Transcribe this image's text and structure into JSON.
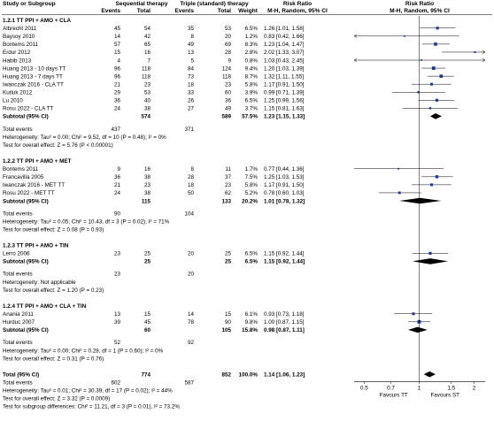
{
  "chart_data": {
    "type": "forest",
    "headers": {
      "study": "Study or Subgroup",
      "seq_group": "Sequential therapy",
      "seq_events": "Events",
      "seq_total": "Total",
      "trip_group": "Triple (standard) therapy",
      "trip_events": "Events",
      "trip_total": "Total",
      "weight": "Weight",
      "rr": "Risk Ratio",
      "rr_method": "M-H, Random, 95% CI",
      "plot_title": "Risk Ratio",
      "plot_method": "M-H, Random, 95% CI"
    },
    "axis": {
      "scale": "log",
      "ticks": [
        0.5,
        0.7,
        1,
        1.5,
        2
      ],
      "tick_labels": [
        "0.5",
        "0.7",
        "1",
        "1.5",
        "2"
      ],
      "xlim": [
        0.44,
        2.3
      ],
      "left_label": "Favours TT",
      "right_label": "Favours ST"
    },
    "subgroups": [
      {
        "title": "1.2.1 TT PPI + AMO + CLA",
        "studies": [
          {
            "name": "Albrecht 2011",
            "e1": "45",
            "n1": "54",
            "e2": "35",
            "n2": "53",
            "w": "6.5%",
            "ci": "1.26 [1.01, 1.58]",
            "rr": 1.26,
            "lo": 1.01,
            "hi": 1.58
          },
          {
            "name": "Baysoy 2010",
            "e1": "14",
            "n1": "42",
            "e2": "8",
            "n2": "20",
            "w": "1.2%",
            "ci": "0.83 [0.42, 1.66]",
            "rr": 0.83,
            "lo": 0.42,
            "hi": 1.66
          },
          {
            "name": "Bontems 2011",
            "e1": "57",
            "n1": "65",
            "e2": "49",
            "n2": "69",
            "w": "8.3%",
            "ci": "1.23 [1.04, 1.47]",
            "rr": 1.23,
            "lo": 1.04,
            "hi": 1.47
          },
          {
            "name": "Erdur 2012",
            "e1": "15",
            "n1": "16",
            "e2": "13",
            "n2": "28",
            "w": "2.8%",
            "ci": "2.02 [1.33, 3.07]",
            "rr": 2.02,
            "lo": 1.33,
            "hi": 3.07
          },
          {
            "name": "Habib 2013",
            "e1": "4",
            "n1": "7",
            "e2": "5",
            "n2": "9",
            "w": "0.8%",
            "ci": "1.03 [0.43, 2.45]",
            "rr": 1.03,
            "lo": 0.43,
            "hi": 2.45
          },
          {
            "name": "Huang 2013 - 10 days TT",
            "e1": "96",
            "n1": "118",
            "e2": "84",
            "n2": "124",
            "w": "9.4%",
            "ci": "1.20 [1.03, 1.39]",
            "rr": 1.2,
            "lo": 1.03,
            "hi": 1.39
          },
          {
            "name": "Huang 2013 - 7 days TT",
            "e1": "96",
            "n1": "118",
            "e2": "73",
            "n2": "118",
            "w": "8.7%",
            "ci": "1.32 [1.11, 1.55]",
            "rr": 1.32,
            "lo": 1.11,
            "hi": 1.55
          },
          {
            "name": "Iwanczak 2016 - CLA TT",
            "e1": "21",
            "n1": "23",
            "e2": "18",
            "n2": "23",
            "w": "5.8%",
            "ci": "1.17 [0.91, 1.50]",
            "rr": 1.17,
            "lo": 0.91,
            "hi": 1.5
          },
          {
            "name": "Kutluk 2012",
            "e1": "29",
            "n1": "53",
            "e2": "33",
            "n2": "60",
            "w": "3.9%",
            "ci": "0.99 [0.71, 1.39]",
            "rr": 0.99,
            "lo": 0.71,
            "hi": 1.39
          },
          {
            "name": "Lu 2010",
            "e1": "36",
            "n1": "40",
            "e2": "26",
            "n2": "36",
            "w": "6.5%",
            "ci": "1.25 [0.99, 1.56]",
            "rr": 1.25,
            "lo": 0.99,
            "hi": 1.56
          },
          {
            "name": "Rosu 2022 - CLA TT",
            "e1": "24",
            "n1": "38",
            "e2": "27",
            "n2": "49",
            "w": "3.7%",
            "ci": "1.15 [0.81, 1.63]",
            "rr": 1.15,
            "lo": 0.81,
            "hi": 1.63
          }
        ],
        "subtotal": {
          "label": "Subtotal (95% CI)",
          "n1": "574",
          "n2": "589",
          "w": "57.5%",
          "ci": "1.23 [1.15, 1.33]",
          "rr": 1.23,
          "lo": 1.15,
          "hi": 1.33
        },
        "events": {
          "label": "Total events",
          "e1": "437",
          "e2": "371"
        },
        "heterogeneity": "Heterogeneity: Tau² = 0.00; Chi² = 9.52, df = 10 (P = 0.48); I² = 0%",
        "overall": "Test for overall effect: Z = 5.76 (P < 0.00001)"
      },
      {
        "title": "1.2.2 TT PPI + AMO + MET",
        "studies": [
          {
            "name": "Bontems 2011",
            "e1": "9",
            "n1": "16",
            "e2": "8",
            "n2": "11",
            "w": "1.7%",
            "ci": "0.77 [0.44, 1.36]",
            "rr": 0.77,
            "lo": 0.44,
            "hi": 1.36
          },
          {
            "name": "Francavilla 2005",
            "e1": "36",
            "n1": "38",
            "e2": "28",
            "n2": "37",
            "w": "7.5%",
            "ci": "1.25 [1.03, 1.53]",
            "rr": 1.25,
            "lo": 1.03,
            "hi": 1.53
          },
          {
            "name": "Iwanczak 2016 - MET TT",
            "e1": "21",
            "n1": "23",
            "e2": "18",
            "n2": "23",
            "w": "5.8%",
            "ci": "1.17 [0.91, 1.50]",
            "rr": 1.17,
            "lo": 0.91,
            "hi": 1.5
          },
          {
            "name": "Rosu 2022 - MET TT",
            "e1": "24",
            "n1": "38",
            "e2": "50",
            "n2": "62",
            "w": "5.2%",
            "ci": "0.78 [0.60, 1.03]",
            "rr": 0.78,
            "lo": 0.6,
            "hi": 1.03
          }
        ],
        "subtotal": {
          "label": "Subtotal (95% CI)",
          "n1": "115",
          "n2": "133",
          "w": "20.2%",
          "ci": "1.01 [0.78, 1.32]",
          "rr": 1.01,
          "lo": 0.78,
          "hi": 1.32
        },
        "events": {
          "label": "Total events",
          "e1": "90",
          "e2": "104"
        },
        "heterogeneity": "Heterogeneity: Tau² = 0.05; Chi² = 10.43, df = 3 (P = 0.02); I² = 71%",
        "overall": "Test for overall effect: Z = 0.08 (P = 0.93)"
      },
      {
        "title": "1.2.3 TT PPI + AMO + TIN",
        "studies": [
          {
            "name": "Lerro 2006",
            "e1": "23",
            "n1": "25",
            "e2": "20",
            "n2": "25",
            "w": "6.5%",
            "ci": "1.15 [0.92, 1.44]",
            "rr": 1.15,
            "lo": 0.92,
            "hi": 1.44
          }
        ],
        "subtotal": {
          "label": "Subtotal (95% CI)",
          "n1": "25",
          "n2": "25",
          "w": "6.5%",
          "ci": "1.15 [0.92, 1.44]",
          "rr": 1.15,
          "lo": 0.92,
          "hi": 1.44
        },
        "events": {
          "label": "Total events",
          "e1": "23",
          "e2": "20"
        },
        "heterogeneity": "Heterogeneity: Not applicable",
        "overall": "Test for overall effect: Z = 1.20 (P = 0.23)"
      },
      {
        "title": "1.2.4 TT PPI + AMO + CLA + TIN",
        "studies": [
          {
            "name": "Anania 2011",
            "e1": "13",
            "n1": "15",
            "e2": "14",
            "n2": "15",
            "w": "6.1%",
            "ci": "0.93 [0.73, 1.18]",
            "rr": 0.93,
            "lo": 0.73,
            "hi": 1.18
          },
          {
            "name": "Hurduc 2007",
            "e1": "39",
            "n1": "45",
            "e2": "78",
            "n2": "90",
            "w": "9.8%",
            "ci": "1.00 [0.87, 1.15]",
            "rr": 1.0,
            "lo": 0.87,
            "hi": 1.15
          }
        ],
        "subtotal": {
          "label": "Subtotal (95% CI)",
          "n1": "60",
          "n2": "105",
          "w": "15.8%",
          "ci": "0.98 [0.87, 1.11]",
          "rr": 0.98,
          "lo": 0.87,
          "hi": 1.11
        },
        "events": {
          "label": "Total events",
          "e1": "52",
          "e2": "92"
        },
        "heterogeneity": "Heterogeneity: Tau² = 0.00; Chi² = 0.28, df = 1 (P = 0.60); I² = 0%",
        "overall": "Test for overall effect: Z = 0.31 (P = 0.76)"
      }
    ],
    "total": {
      "label": "Total (95% CI)",
      "n1": "774",
      "n2": "852",
      "w": "100.0%",
      "ci": "1.14 [1.06, 1.23]",
      "rr": 1.14,
      "lo": 1.06,
      "hi": 1.23
    },
    "total_events": {
      "label": "Total events",
      "e1": "602",
      "e2": "587"
    },
    "footer": [
      "Heterogeneity: Tau² = 0.01; Chi² = 30.39, df = 17 (P = 0.02); I² = 44%",
      "Test for overall effect: Z = 3.32 (P = 0.0009)",
      "Test for subgroup differences: Chi² = 11.21, df = 3 (P = 0.01), I² = 73.2%"
    ],
    "colors": {
      "marker": "#1f3a93",
      "diamond": "#000000",
      "line": "#000000"
    }
  }
}
